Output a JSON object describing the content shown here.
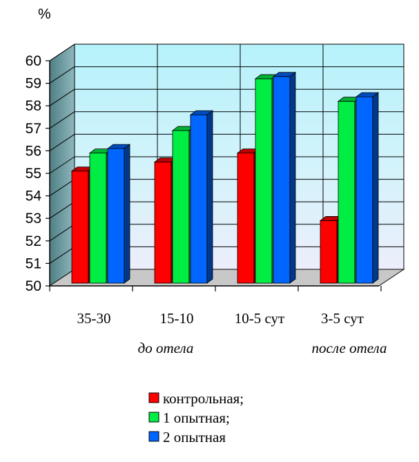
{
  "chart_data": {
    "type": "bar",
    "ylabel": "%",
    "ylim": [
      50,
      60
    ],
    "yticks": [
      "50",
      "51",
      "52",
      "53",
      "54",
      "55",
      "56",
      "57",
      "58",
      "59",
      "60"
    ],
    "categories": [
      "35-30",
      "15-10",
      "10-5 сут",
      "3-5 сут"
    ],
    "groups": [
      {
        "label": "до отела"
      },
      {
        "label": "после отела"
      }
    ],
    "series": [
      {
        "name": "контрольная;",
        "color": "#ff0000",
        "values": [
          55.1,
          55.5,
          55.9,
          52.9
        ]
      },
      {
        "name": "1 опытная;",
        "color": "#00ee44",
        "values": [
          55.9,
          56.9,
          59.2,
          58.2
        ]
      },
      {
        "name": "2 опытная",
        "color": "#0066ff",
        "values": [
          56.1,
          57.6,
          59.3,
          58.4
        ]
      }
    ],
    "grid": true,
    "legend_position": "bottom"
  }
}
